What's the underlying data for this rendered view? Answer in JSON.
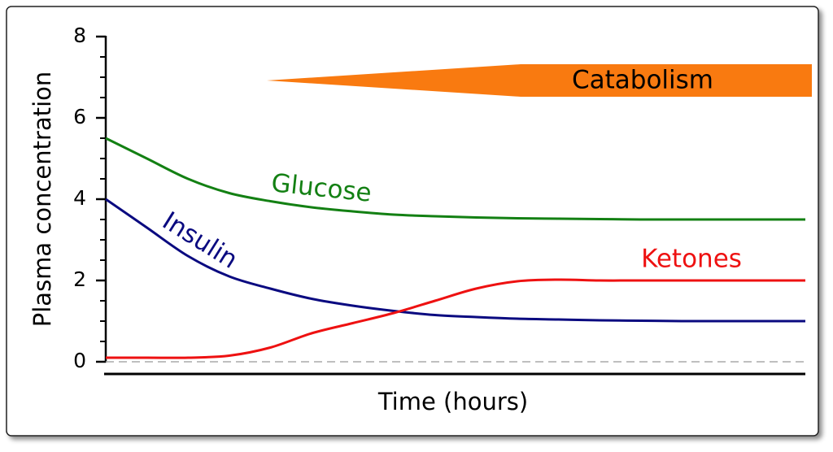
{
  "chart_data": {
    "type": "line",
    "x_label": "Time (hours)",
    "y_label": "Plasma concentration",
    "annotation": "Catabolism",
    "categories": [
      null,
      null,
      null,
      null,
      null,
      null,
      null,
      null,
      null,
      null,
      null,
      null,
      null,
      null,
      null,
      null,
      null,
      null
    ],
    "series": [
      {
        "name": "Glucose",
        "color": "#138013",
        "values": [
          5.5,
          5.0,
          4.5,
          4.15,
          3.95,
          3.8,
          3.7,
          3.62,
          3.58,
          3.55,
          3.53,
          3.52,
          3.51,
          3.5,
          3.5,
          3.5,
          3.5,
          3.5
        ]
      },
      {
        "name": "Insulin",
        "color": "#0a0a80",
        "values": [
          4.0,
          3.3,
          2.6,
          2.1,
          1.8,
          1.55,
          1.38,
          1.25,
          1.15,
          1.1,
          1.06,
          1.04,
          1.02,
          1.01,
          1.0,
          1.0,
          1.0,
          1.0
        ]
      },
      {
        "name": "Ketones",
        "color": "#ee1111",
        "values": [
          0.1,
          0.1,
          0.1,
          0.15,
          0.35,
          0.7,
          0.95,
          1.2,
          1.5,
          1.8,
          1.98,
          2.02,
          2.0,
          2.0,
          2.0,
          2.0,
          2.0,
          2.0
        ]
      }
    ],
    "ylim": [
      0,
      8
    ],
    "yticks": [
      0,
      2,
      4,
      6,
      8
    ],
    "y_minor_ticks": [
      0.5,
      1,
      1.5,
      2.5,
      3,
      3.5,
      4.5,
      5,
      5.5,
      6.5,
      7,
      7.5
    ],
    "annotation_color": "#f97a10"
  }
}
